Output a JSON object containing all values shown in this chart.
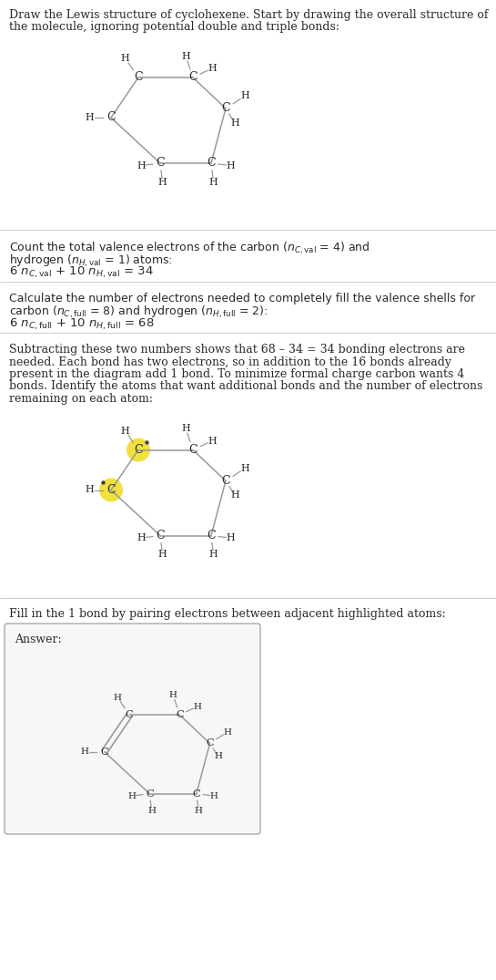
{
  "bg_color": "#ffffff",
  "text_color": "#2a2a2a",
  "bond_color": "#999999",
  "highlight_color": "#f0e040",
  "section_line_color": "#cccccc",
  "fig_width": 5.45,
  "fig_height": 10.75,
  "dpi": 100,
  "font_size": 9.0,
  "sections": {
    "s1_title": [
      "Draw the Lewis structure of cyclohexene. Start by drawing the overall structure of",
      "the molecule, ignoring potential double and triple bonds:"
    ],
    "s2_line1": "Count the total valence electrons of the carbon (",
    "s2_line1b": ") and",
    "s2_line2": ") atoms:",
    "s2_line3": " + 10 ",
    "s3_line1": "Calculate the number of electrons needed to completely fill the valence shells for",
    "s3_line2a": "carbon (",
    "s3_line2b": " = 8) and hydrogen (",
    "s3_line2c": " = 2):",
    "s3_line3": " + 10 ",
    "s4_text": [
      "Subtracting these two numbers shows that 68 – 34 = 34 bonding electrons are",
      "needed. Each bond has two electrons, so in addition to the 16 bonds already",
      "present in the diagram add 1 bond. To minimize formal charge carbon wants 4",
      "bonds. Identify the atoms that want additional bonds and the number of electrons",
      "remaining on each atom:"
    ],
    "s5_text": "Fill in the 1 bond by pairing electrons between adjacent highlighted atoms:",
    "answer": "Answer:"
  }
}
